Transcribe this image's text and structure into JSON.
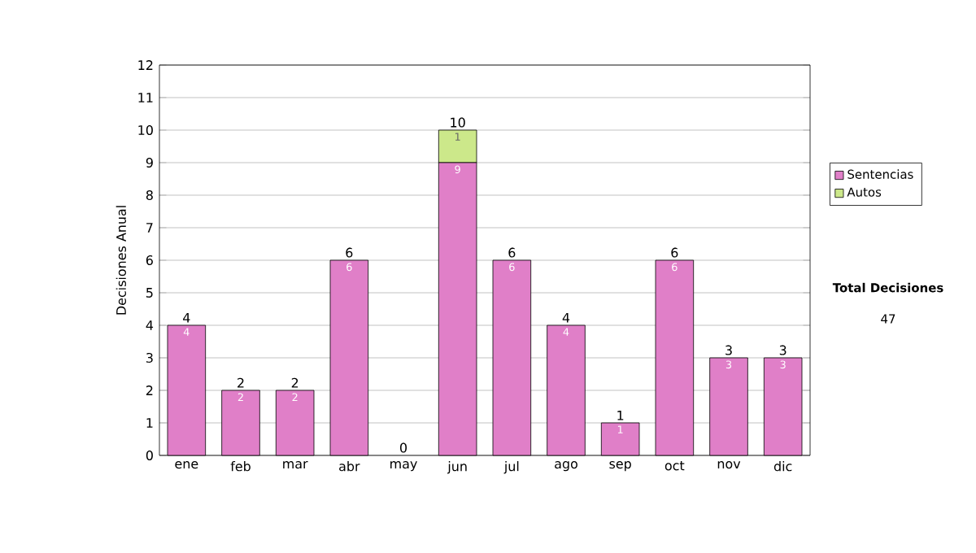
{
  "chart_data": {
    "type": "bar",
    "stacked": true,
    "ylabel": "Decisiones Anual",
    "categories": [
      "ene",
      "feb",
      "mar",
      "abr",
      "may",
      "jun",
      "jul",
      "ago",
      "sep",
      "oct",
      "nov",
      "dic"
    ],
    "series": [
      {
        "name": "Sentencias",
        "color": "#e07fc8",
        "values": [
          4,
          2,
          2,
          6,
          0,
          9,
          6,
          4,
          1,
          6,
          3,
          3
        ],
        "value_labels": [
          "4",
          "2",
          "2",
          "6",
          null,
          "9",
          "6",
          "4",
          "1",
          "6",
          "3",
          "3"
        ]
      },
      {
        "name": "Autos",
        "color": "#cce88a",
        "values": [
          0,
          0,
          0,
          0,
          0,
          1,
          0,
          0,
          0,
          0,
          0,
          0
        ],
        "value_labels": [
          null,
          null,
          null,
          null,
          null,
          "1",
          null,
          null,
          null,
          null,
          null,
          null
        ]
      }
    ],
    "totals": [
      "4",
      "2",
      "2",
      "6",
      "0",
      "10",
      "6",
      "4",
      "1",
      "6",
      "3",
      "3"
    ],
    "ylim": [
      0,
      12
    ],
    "yticks": [
      0,
      1,
      2,
      3,
      4,
      5,
      6,
      7,
      8,
      9,
      10,
      11,
      12
    ],
    "grid": "y",
    "legend": "right",
    "annotations": [
      "Total Decisiones",
      "47"
    ]
  }
}
